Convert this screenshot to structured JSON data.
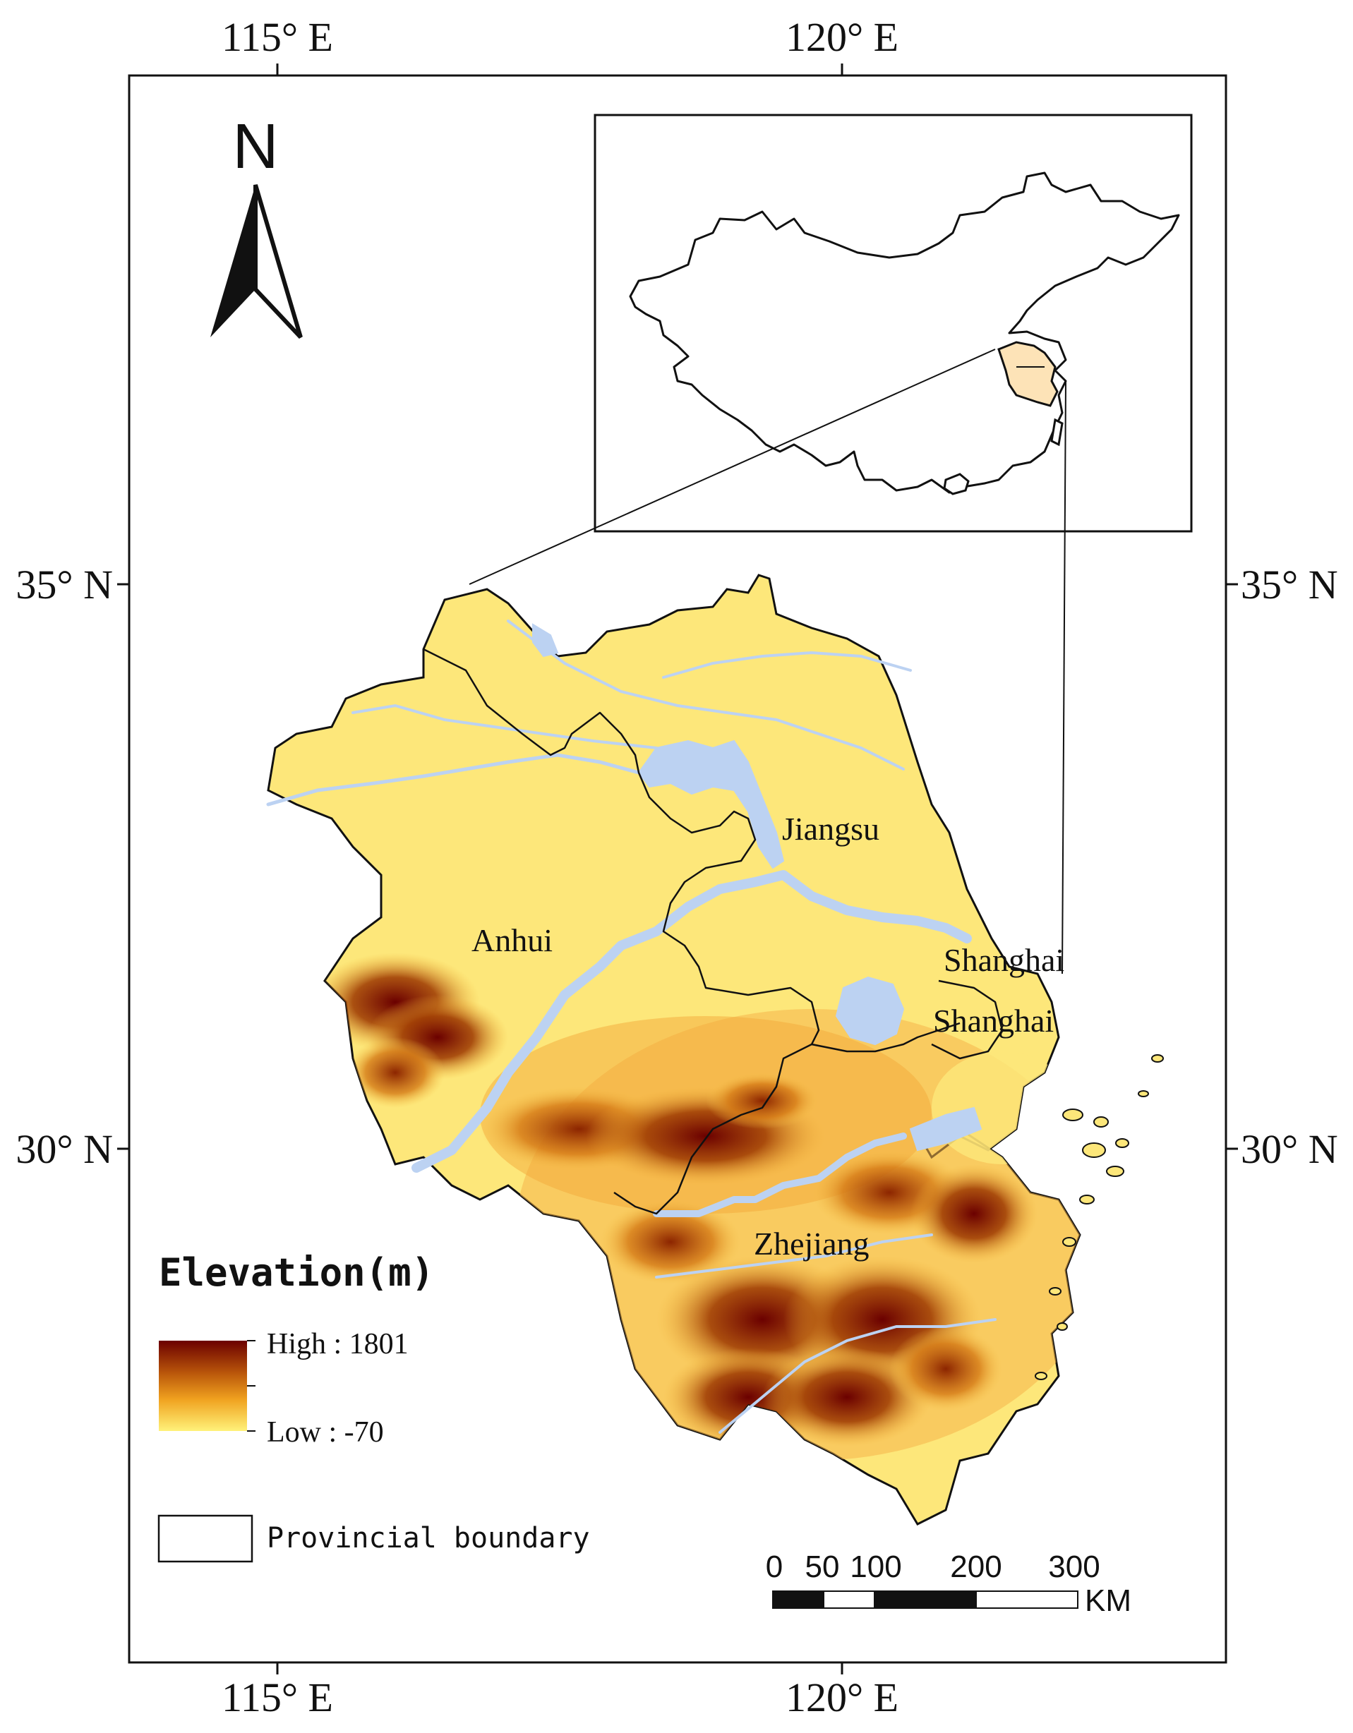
{
  "coordinates": {
    "top": [
      "115° E",
      "120° E"
    ],
    "bottom": [
      "115° E",
      "120° E"
    ],
    "left": [
      "35° N",
      "30° N"
    ],
    "right": [
      "35° N",
      "30° N"
    ]
  },
  "north_arrow": {
    "label": "N"
  },
  "provinces": {
    "jiangsu": "Jiangsu",
    "anhui": "Anhui",
    "zhejiang": "Zhejiang",
    "shanghai_1": "Shanghai",
    "shanghai_2": "Shanghai"
  },
  "legend": {
    "title": "Elevation(m)",
    "high": "High : 1801",
    "low": "Low : -70",
    "boundary": "Provincial boundary",
    "ramp_colors": [
      "#6b0000",
      "#b8540a",
      "#f0a21f",
      "#fff27a"
    ]
  },
  "scale_bar": {
    "labels": [
      "0",
      "50",
      "100",
      "200",
      "300"
    ],
    "unit": "KM"
  },
  "colors": {
    "water": "#bcd2f2",
    "lowland": "#fde77a",
    "inset_highlight": "#fde3b7"
  }
}
